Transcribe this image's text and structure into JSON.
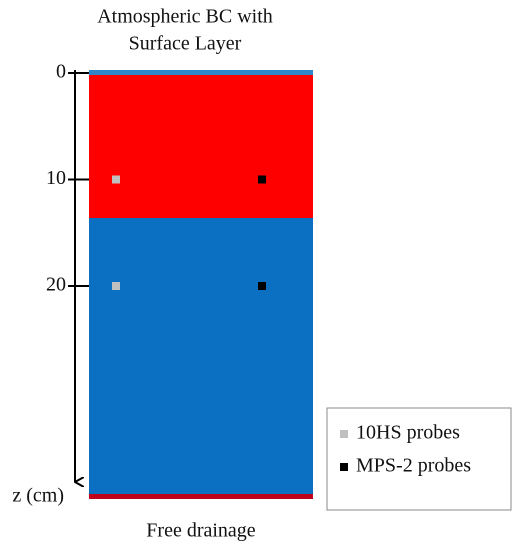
{
  "title": [
    "Atmospheric BC with",
    "Surface Layer"
  ],
  "axis": {
    "label": "z (cm)",
    "ticks": [
      0,
      10,
      20
    ]
  },
  "bottom_label": "Free drainage",
  "probes": [
    {
      "name": "10HS probes",
      "color": "#c0c0c0",
      "depths": [
        10,
        20
      ]
    },
    {
      "name": "MPS-2 probes",
      "color": "#000000",
      "depths": [
        10,
        20
      ]
    }
  ]
}
